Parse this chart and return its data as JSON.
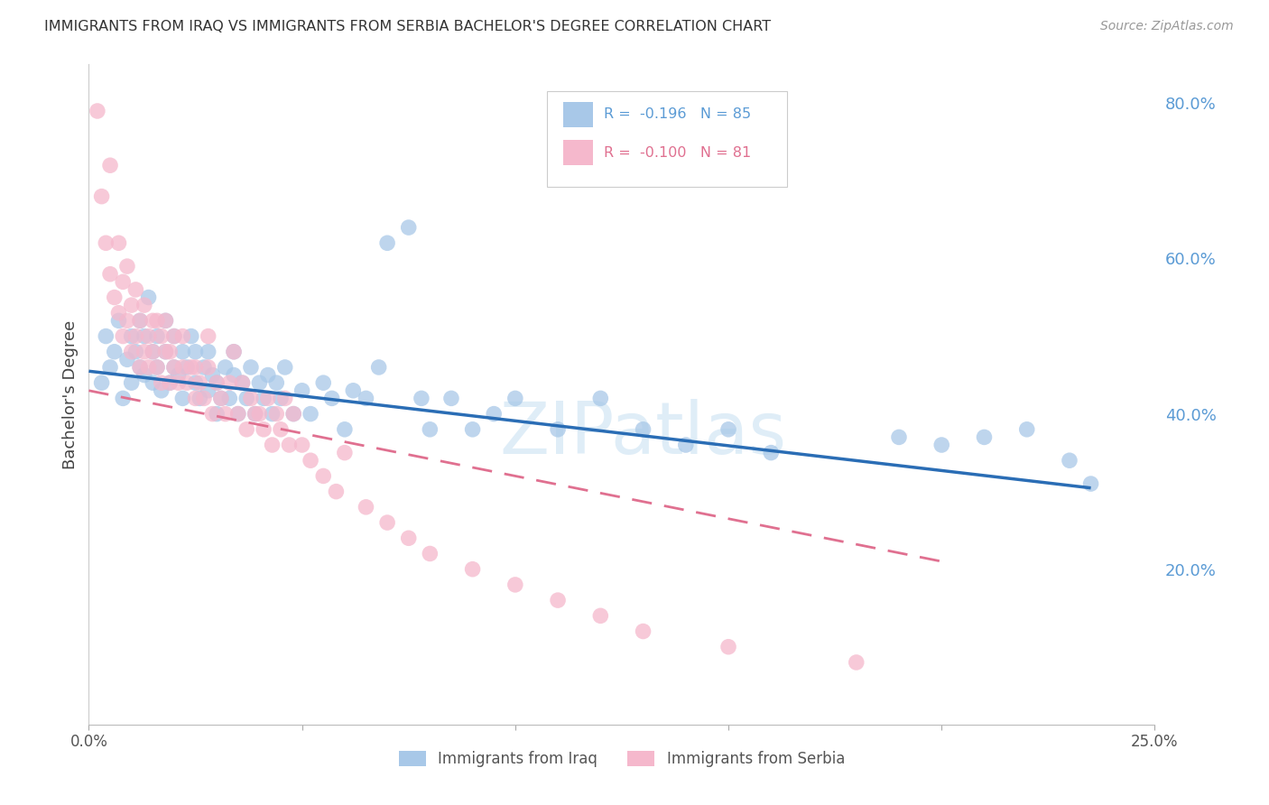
{
  "title": "IMMIGRANTS FROM IRAQ VS IMMIGRANTS FROM SERBIA BACHELOR'S DEGREE CORRELATION CHART",
  "source": "Source: ZipAtlas.com",
  "ylabel": "Bachelor's Degree",
  "xlim": [
    0.0,
    0.25
  ],
  "ylim": [
    0.0,
    0.85
  ],
  "iraq_color": "#a8c8e8",
  "serbia_color": "#f5b8cc",
  "iraq_line_color": "#2a6db5",
  "serbia_line_color": "#e07090",
  "watermark": "ZIPatlas",
  "legend_iraq_R": "-0.196",
  "legend_iraq_N": "85",
  "legend_serbia_R": "-0.100",
  "legend_serbia_N": "81"
}
